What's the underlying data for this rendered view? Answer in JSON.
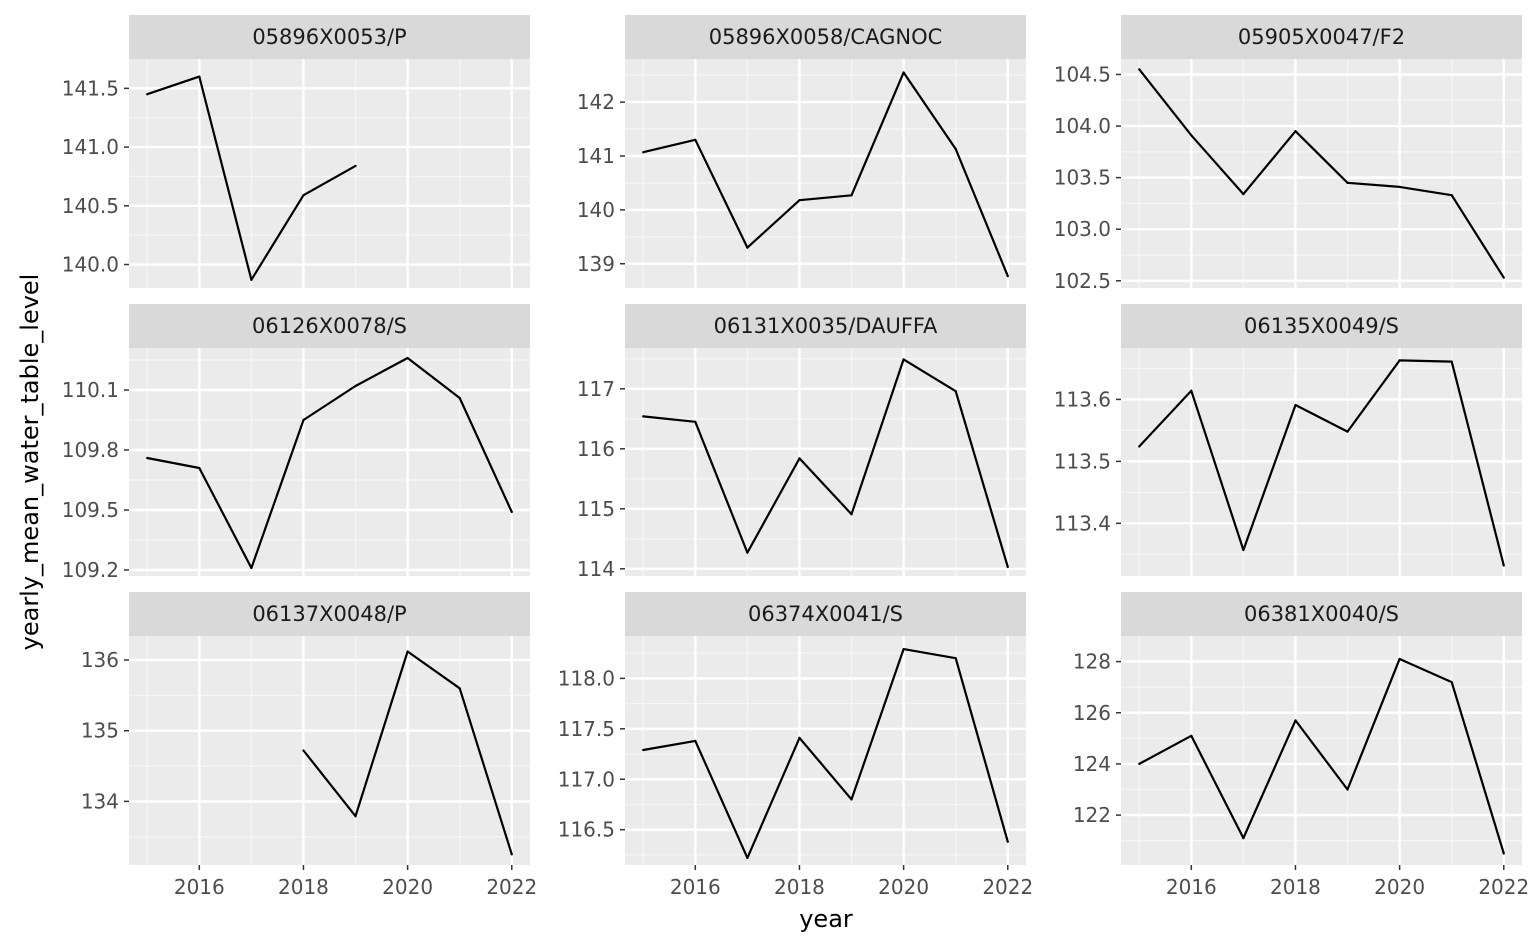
{
  "chart_data": {
    "type": "line",
    "layout": "facet-wrap 3x3",
    "xlabel": "year",
    "ylabel": "yearly_mean_water_table_level",
    "x_ticks": [
      2016,
      2018,
      2020,
      2022
    ],
    "xlim": [
      2014.65,
      2022.35
    ],
    "grid": true,
    "panels": [
      {
        "title": "05896X0053/P",
        "x": [
          2015,
          2016,
          2017,
          2018,
          2019
        ],
        "y": [
          141.45,
          141.6,
          139.87,
          140.59,
          140.84
        ],
        "yticks": [
          141.5,
          141.0,
          140.5,
          140.0
        ],
        "ytick_labels": [
          "141.5",
          "141.0",
          "140.5",
          "140.0"
        ],
        "ylim": [
          139.8,
          141.75
        ]
      },
      {
        "title": "05896X0058/CAGNOC",
        "x": [
          2015,
          2016,
          2017,
          2018,
          2019,
          2020,
          2021,
          2022
        ],
        "y": [
          141.07,
          141.3,
          139.3,
          140.18,
          140.27,
          142.55,
          141.13,
          138.77
        ],
        "yticks": [
          142,
          141,
          140,
          139
        ],
        "ytick_labels": [
          "142",
          "141",
          "140",
          "139"
        ],
        "ylim": [
          138.55,
          142.8
        ]
      },
      {
        "title": "05905X0047/F2",
        "x": [
          2015,
          2016,
          2017,
          2018,
          2019,
          2020,
          2021,
          2022
        ],
        "y": [
          104.55,
          103.91,
          103.34,
          103.95,
          103.45,
          103.41,
          103.33,
          102.53
        ],
        "yticks": [
          104.5,
          104.0,
          103.5,
          103.0,
          102.5
        ],
        "ytick_labels": [
          "104.5",
          "104.0",
          "103.5",
          "103.0",
          "102.5"
        ],
        "ylim": [
          102.43,
          104.65
        ]
      },
      {
        "title": "06126X0078/S",
        "x": [
          2015,
          2016,
          2017,
          2018,
          2019,
          2020,
          2021,
          2022
        ],
        "y": [
          109.76,
          109.71,
          109.21,
          109.95,
          110.12,
          110.26,
          110.06,
          109.49
        ],
        "yticks": [
          110.1,
          109.8,
          109.5,
          109.2
        ],
        "ytick_labels": [
          "110.1",
          "109.8",
          "109.5",
          "109.2"
        ],
        "ylim": [
          109.17,
          110.31
        ]
      },
      {
        "title": "06131X0035/DAUFFA",
        "x": [
          2015,
          2016,
          2017,
          2018,
          2019,
          2020,
          2021,
          2022
        ],
        "y": [
          116.54,
          116.45,
          114.27,
          115.84,
          114.91,
          117.49,
          116.96,
          114.03
        ],
        "yticks": [
          117,
          116,
          115,
          114
        ],
        "ytick_labels": [
          "117",
          "116",
          "115",
          "114"
        ],
        "ylim": [
          113.88,
          117.68
        ]
      },
      {
        "title": "06135X0049/S",
        "x": [
          2015,
          2016,
          2017,
          2018,
          2019,
          2020,
          2021,
          2022
        ],
        "y": [
          113.524,
          113.614,
          113.357,
          113.591,
          113.548,
          113.663,
          113.661,
          113.332
        ],
        "yticks": [
          113.6,
          113.5,
          113.4
        ],
        "ytick_labels": [
          "113.6",
          "113.5",
          "113.4"
        ],
        "ylim": [
          113.315,
          113.683
        ]
      },
      {
        "title": "06137X0048/P",
        "x": [
          2018,
          2019,
          2020,
          2021,
          2022
        ],
        "y": [
          134.72,
          133.79,
          136.12,
          135.6,
          133.25
        ],
        "yticks": [
          136,
          135,
          134
        ],
        "ytick_labels": [
          "136",
          "135",
          "134"
        ],
        "ylim": [
          133.1,
          136.34
        ]
      },
      {
        "title": "06374X0041/S",
        "x": [
          2015,
          2016,
          2017,
          2018,
          2019,
          2020,
          2021,
          2022
        ],
        "y": [
          117.29,
          117.38,
          116.22,
          117.41,
          116.8,
          118.29,
          118.2,
          116.38
        ],
        "yticks": [
          118.0,
          117.5,
          117.0,
          116.5
        ],
        "ytick_labels": [
          "118.0",
          "117.5",
          "117.0",
          "116.5"
        ],
        "ylim": [
          116.15,
          118.42
        ]
      },
      {
        "title": "06381X0040/S",
        "x": [
          2015,
          2016,
          2017,
          2018,
          2019,
          2020,
          2021,
          2022
        ],
        "y": [
          124.0,
          125.1,
          121.1,
          125.7,
          123.0,
          128.1,
          127.2,
          120.5
        ],
        "yticks": [
          128,
          126,
          124,
          122
        ],
        "ytick_labels": [
          "128",
          "126",
          "124",
          "122"
        ],
        "ylim": [
          120.05,
          129.0
        ]
      }
    ]
  }
}
